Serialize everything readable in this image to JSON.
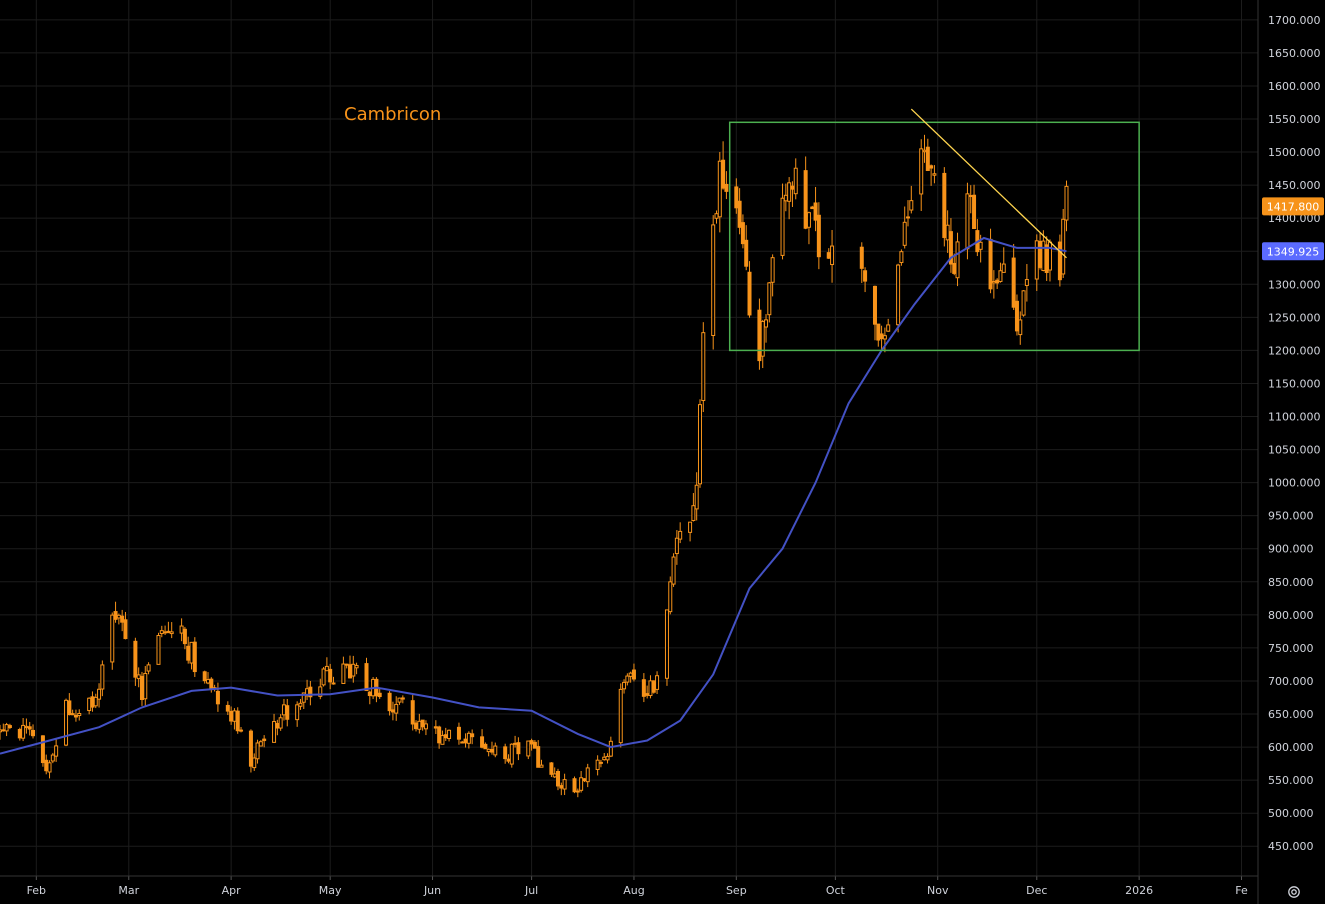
{
  "chart_data": {
    "type": "candlestick",
    "title": "Cambricon",
    "ylim": [
      405,
      1730
    ],
    "y_ticks": [
      "1700.000",
      "1650.000",
      "1600.000",
      "1550.000",
      "1500.000",
      "1450.000",
      "1400.000",
      "1350.000",
      "1300.000",
      "1250.000",
      "1200.000",
      "1150.000",
      "1100.000",
      "1050.000",
      "1000.000",
      "950.000",
      "900.000",
      "850.000",
      "800.000",
      "750.000",
      "700.000",
      "650.000",
      "600.000",
      "550.000",
      "500.000",
      "450.000"
    ],
    "y_tick_values": [
      1700,
      1650,
      1600,
      1550,
      1500,
      1450,
      1400,
      1350,
      1300,
      1250,
      1200,
      1150,
      1100,
      1050,
      1000,
      950,
      900,
      850,
      800,
      750,
      700,
      650,
      600,
      550,
      500,
      450
    ],
    "x_range": [
      "2025-01-21",
      "2026-02-06"
    ],
    "x_ticks": [
      {
        "label": "Feb",
        "date": "2025-02-01"
      },
      {
        "label": "Mar",
        "date": "2025-03-01"
      },
      {
        "label": "Apr",
        "date": "2025-04-01"
      },
      {
        "label": "May",
        "date": "2025-05-01"
      },
      {
        "label": "Jun",
        "date": "2025-06-01"
      },
      {
        "label": "Jul",
        "date": "2025-07-01"
      },
      {
        "label": "Aug",
        "date": "2025-08-01"
      },
      {
        "label": "Sep",
        "date": "2025-09-01"
      },
      {
        "label": "Oct",
        "date": "2025-10-01"
      },
      {
        "label": "Nov",
        "date": "2025-11-01"
      },
      {
        "label": "Dec",
        "date": "2025-12-01"
      },
      {
        "label": "2026",
        "date": "2026-01-01"
      },
      {
        "label": "Fe",
        "date": "2026-02-01"
      }
    ],
    "series": [
      {
        "kind": "ohlc_close_path",
        "color": "#f7931a",
        "points": [
          [
            "2025-01-21",
            620
          ],
          [
            "2025-01-28",
            630
          ],
          [
            "2025-02-05",
            570
          ],
          [
            "2025-02-10",
            660
          ],
          [
            "2025-02-14",
            640
          ],
          [
            "2025-02-20",
            680
          ],
          [
            "2025-02-24",
            800
          ],
          [
            "2025-02-28",
            760
          ],
          [
            "2025-03-05",
            680
          ],
          [
            "2025-03-10",
            770
          ],
          [
            "2025-03-13",
            790
          ],
          [
            "2025-03-18",
            760
          ],
          [
            "2025-03-24",
            700
          ],
          [
            "2025-03-28",
            680
          ],
          [
            "2025-04-02",
            640
          ],
          [
            "2025-04-07",
            580
          ],
          [
            "2025-04-10",
            620
          ],
          [
            "2025-04-15",
            640
          ],
          [
            "2025-04-22",
            670
          ],
          [
            "2025-04-28",
            700
          ],
          [
            "2025-05-06",
            720
          ],
          [
            "2025-05-12",
            700
          ],
          [
            "2025-05-16",
            680
          ],
          [
            "2025-05-22",
            660
          ],
          [
            "2025-05-28",
            640
          ],
          [
            "2025-06-05",
            610
          ],
          [
            "2025-06-12",
            620
          ],
          [
            "2025-06-18",
            610
          ],
          [
            "2025-06-24",
            590
          ],
          [
            "2025-06-30",
            610
          ],
          [
            "2025-07-04",
            560
          ],
          [
            "2025-07-10",
            545
          ],
          [
            "2025-07-15",
            540
          ],
          [
            "2025-07-18",
            570
          ],
          [
            "2025-07-22",
            590
          ],
          [
            "2025-07-25",
            600
          ],
          [
            "2025-07-28",
            690
          ],
          [
            "2025-08-01",
            700
          ],
          [
            "2025-08-05",
            690
          ],
          [
            "2025-08-08",
            700
          ],
          [
            "2025-08-11",
            820
          ],
          [
            "2025-08-14",
            900
          ],
          [
            "2025-08-18",
            930
          ],
          [
            "2025-08-20",
            1020
          ],
          [
            "2025-08-22",
            1230
          ],
          [
            "2025-08-25",
            1380
          ],
          [
            "2025-08-27",
            1500
          ],
          [
            "2025-08-29",
            1440
          ],
          [
            "2025-09-02",
            1400
          ],
          [
            "2025-09-04",
            1300
          ],
          [
            "2025-09-08",
            1200
          ],
          [
            "2025-09-11",
            1300
          ],
          [
            "2025-09-16",
            1450
          ],
          [
            "2025-09-19",
            1480
          ],
          [
            "2025-09-23",
            1400
          ],
          [
            "2025-09-26",
            1350
          ],
          [
            "2025-09-30",
            1380
          ],
          [
            "2025-10-09",
            1310
          ],
          [
            "2025-10-13",
            1220
          ],
          [
            "2025-10-15",
            1240
          ],
          [
            "2025-10-20",
            1300
          ],
          [
            "2025-10-23",
            1420
          ],
          [
            "2025-10-27",
            1520
          ],
          [
            "2025-10-30",
            1480
          ],
          [
            "2025-11-03",
            1380
          ],
          [
            "2025-11-06",
            1340
          ],
          [
            "2025-11-10",
            1420
          ],
          [
            "2025-11-13",
            1360
          ],
          [
            "2025-11-17",
            1300
          ],
          [
            "2025-11-20",
            1320
          ],
          [
            "2025-11-24",
            1250
          ],
          [
            "2025-11-27",
            1280
          ],
          [
            "2025-12-01",
            1340
          ],
          [
            "2025-12-04",
            1330
          ],
          [
            "2025-12-08",
            1340
          ],
          [
            "2025-12-10",
            1417.8
          ]
        ]
      },
      {
        "kind": "line",
        "color": "#4351c4",
        "points": [
          [
            "2025-01-21",
            590
          ],
          [
            "2025-02-05",
            610
          ],
          [
            "2025-02-20",
            630
          ],
          [
            "2025-03-05",
            660
          ],
          [
            "2025-03-20",
            685
          ],
          [
            "2025-04-01",
            690
          ],
          [
            "2025-04-15",
            678
          ],
          [
            "2025-05-01",
            680
          ],
          [
            "2025-05-15",
            690
          ],
          [
            "2025-06-01",
            675
          ],
          [
            "2025-06-15",
            660
          ],
          [
            "2025-07-01",
            655
          ],
          [
            "2025-07-15",
            620
          ],
          [
            "2025-07-25",
            600
          ],
          [
            "2025-08-05",
            610
          ],
          [
            "2025-08-15",
            640
          ],
          [
            "2025-08-25",
            710
          ],
          [
            "2025-09-05",
            840
          ],
          [
            "2025-09-15",
            900
          ],
          [
            "2025-09-25",
            1000
          ],
          [
            "2025-10-05",
            1120
          ],
          [
            "2025-10-15",
            1200
          ],
          [
            "2025-10-25",
            1270
          ],
          [
            "2025-11-05",
            1340
          ],
          [
            "2025-11-15",
            1370
          ],
          [
            "2025-11-25",
            1355
          ],
          [
            "2025-12-05",
            1355
          ],
          [
            "2025-12-10",
            1349.925
          ]
        ]
      }
    ],
    "rectangle": {
      "x0": "2025-08-30",
      "x1": "2026-01-01",
      "y0": 1200,
      "y1": 1545,
      "color": "#4caf50"
    },
    "trendline": {
      "x0": "2025-10-24",
      "y0": 1565,
      "x1": "2025-12-10",
      "y1": 1340,
      "color": "#ffd54f"
    },
    "price_tags": [
      {
        "value": 1417.8,
        "label": "1417.800",
        "color": "#f7931a"
      },
      {
        "value": 1349.925,
        "label": "1349.925",
        "color": "#5b6bff"
      }
    ]
  },
  "toolbar": {
    "settings_icon": "gear-icon"
  }
}
